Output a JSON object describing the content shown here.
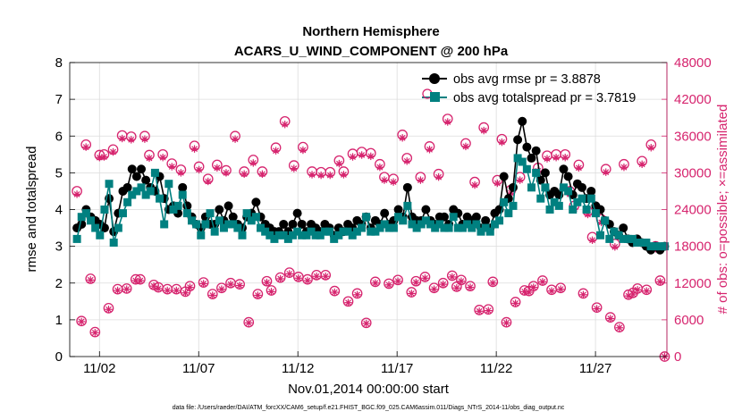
{
  "chart_data": {
    "type": "line",
    "title_line1": "Northern Hemisphere",
    "title_line2": "ACARS_U_WIND_COMPONENT @ 200 hPa",
    "xlabel": "Nov.01,2014 00:00:00 start",
    "ylabel_left": "rmse and totalspread",
    "ylabel_right": "# of obs: o=possible; ×=assimilated",
    "footnote": "data file: /Users/raeder/DAI/ATM_forcXX/CAM6_setup/f.e21.FHIST_BGC.f09_025.CAM6assim.011/Diags_NTrS_2014-11/obs_diag_output.nc",
    "xlim": [
      0.5,
      30.6
    ],
    "ylim_left": [
      0,
      8
    ],
    "ylim_right": [
      0,
      48000
    ],
    "left_ticks": [
      "0",
      "1",
      "2",
      "3",
      "4",
      "5",
      "6",
      "7",
      "8"
    ],
    "right_ticks": [
      "0",
      "6000",
      "12000",
      "18000",
      "24000",
      "30000",
      "36000",
      "42000",
      "48000"
    ],
    "x_ticks": [
      {
        "day": 2,
        "label": "11/02"
      },
      {
        "day": 7,
        "label": "11/07"
      },
      {
        "day": 12,
        "label": "11/12"
      },
      {
        "day": 17,
        "label": "11/17"
      },
      {
        "day": 22,
        "label": "11/22"
      },
      {
        "day": 27,
        "label": "11/27"
      }
    ],
    "colors": {
      "rmse": "#000000",
      "spread": "#008080",
      "obs": "#d6246e",
      "grid": "#dcdcdc"
    },
    "legend": {
      "position": "top-right",
      "entries": [
        "obs avg rmse pr = 3.8878",
        "obs avg totalspread pr = 3.7819"
      ]
    },
    "series": [
      {
        "name": "obs avg rmse pr = 3.8878",
        "axis": "left",
        "values": [
          3.5,
          3.6,
          4.0,
          3.8,
          3.7,
          3.6,
          3.5,
          4.3,
          3.4,
          3.9,
          4.5,
          4.6,
          5.1,
          4.9,
          5.1,
          4.8,
          4.6,
          4.5,
          4.9,
          4.3,
          4.0,
          4.1,
          3.9,
          4.6,
          4.1,
          3.8,
          3.6,
          3.5,
          3.8,
          3.6,
          3.6,
          4.0,
          3.7,
          4.1,
          3.8,
          3.6,
          3.5,
          3.8,
          3.9,
          4.2,
          3.8,
          3.6,
          3.5,
          3.4,
          3.4,
          3.6,
          3.4,
          3.6,
          3.9,
          3.6,
          3.4,
          3.6,
          3.5,
          3.4,
          3.6,
          3.5,
          3.3,
          3.5,
          3.4,
          3.6,
          3.5,
          3.7,
          3.6,
          3.8,
          3.5,
          3.7,
          3.6,
          3.9,
          3.6,
          3.7,
          4.0,
          3.8,
          4.6,
          3.8,
          3.7,
          3.7,
          4.0,
          3.7,
          3.6,
          3.8,
          3.8,
          3.6,
          4.0,
          3.9,
          3.6,
          3.8,
          3.7,
          3.8,
          3.5,
          3.7,
          3.5,
          3.9,
          4.0,
          4.9,
          4.3,
          4.6,
          5.9,
          6.4,
          5.7,
          5.4,
          5.6,
          4.8,
          5.0,
          4.4,
          4.5,
          4.4,
          5.1,
          4.9,
          4.4,
          4.7,
          4.6,
          4.3,
          4.5,
          4.1,
          4.0,
          3.7,
          3.6,
          3.4,
          3.3,
          3.5,
          3.2,
          3.1,
          3.2,
          3.1,
          3.0,
          2.9,
          3.0,
          2.9,
          3.0
        ]
      },
      {
        "name": "obs avg totalspread pr = 3.7819",
        "axis": "left",
        "values": [
          3.2,
          3.8,
          3.9,
          3.7,
          3.5,
          3.3,
          4.0,
          4.7,
          3.1,
          3.5,
          3.9,
          4.2,
          4.4,
          4.5,
          4.6,
          4.4,
          4.5,
          5.0,
          4.3,
          3.6,
          4.7,
          4.0,
          4.1,
          4.4,
          3.9,
          3.7,
          3.6,
          3.3,
          3.6,
          3.9,
          3.4,
          3.7,
          3.5,
          3.6,
          3.6,
          3.5,
          3.3,
          3.9,
          3.7,
          3.8,
          3.5,
          3.4,
          3.3,
          3.2,
          3.3,
          3.3,
          3.2,
          3.3,
          3.4,
          3.3,
          3.3,
          3.4,
          3.3,
          3.3,
          3.4,
          3.4,
          3.2,
          3.3,
          3.4,
          3.4,
          3.3,
          3.4,
          3.5,
          3.8,
          3.4,
          3.4,
          3.5,
          3.6,
          3.5,
          3.5,
          3.8,
          3.7,
          4.1,
          3.6,
          3.5,
          3.6,
          3.7,
          3.6,
          3.5,
          3.6,
          3.5,
          3.5,
          3.8,
          3.5,
          3.5,
          3.6,
          3.5,
          3.6,
          3.4,
          3.5,
          3.4,
          3.6,
          3.7,
          4.2,
          3.9,
          4.1,
          5.4,
          5.3,
          5.1,
          4.6,
          5.0,
          4.3,
          4.6,
          4.0,
          4.2,
          4.1,
          4.6,
          4.5,
          4.0,
          4.2,
          4.3,
          4.0,
          4.3,
          3.9,
          3.3,
          3.7,
          3.2,
          3.4,
          3.3,
          3.2,
          3.2,
          3.2,
          3.1,
          3.1,
          3.1,
          3.0,
          3.0,
          3.0,
          3.0
        ]
      },
      {
        "name": "# of obs possible",
        "axis": "right",
        "marker": "circle",
        "values": [
          27000,
          5800,
          34600,
          12700,
          4000,
          32900,
          33000,
          7900,
          33800,
          11000,
          36100,
          11100,
          35900,
          12600,
          12600,
          36000,
          32900,
          11700,
          11300,
          33000,
          11000,
          31500,
          11000,
          30500,
          10600,
          11500,
          34400,
          31000,
          12100,
          29000,
          10200,
          31300,
          11200,
          30400,
          12000,
          36000,
          11800,
          30200,
          5600,
          32100,
          10200,
          30200,
          12300,
          10800,
          34100,
          12900,
          38400,
          13700,
          31200,
          13000,
          34200,
          12600,
          30200,
          13300,
          30100,
          13300,
          30100,
          10700,
          32000,
          30200,
          9000,
          33100,
          10300,
          33400,
          5500,
          33200,
          12200,
          31400,
          29300,
          11900,
          29000,
          12500,
          36200,
          32400,
          10500,
          12300,
          29300,
          13000,
          34300,
          11200,
          29800,
          12000,
          38800,
          13200,
          11400,
          12500,
          34800,
          11500,
          28500,
          7600,
          37400,
          7700,
          12200,
          28800,
          35500,
          5600,
          27200,
          8900,
          29300,
          10800,
          10700,
          11500,
          30800,
          12400,
          32800,
          10900,
          33000,
          11200,
          33000,
          27000,
          24600,
          31300,
          10300,
          23700,
          19500,
          8000,
          22400,
          30600,
          6400,
          18400,
          4800,
          31400,
          10100,
          10400,
          11100,
          31900,
          10900,
          34600,
          18000,
          12400,
          0
        ]
      },
      {
        "name": "# of obs assimilated",
        "axis": "right",
        "marker": "star",
        "values": [
          26500,
          5700,
          34200,
          12500,
          3900,
          32500,
          32600,
          7700,
          33400,
          10800,
          35600,
          11000,
          35400,
          12400,
          12400,
          35500,
          32400,
          11500,
          11100,
          32500,
          10800,
          31000,
          10800,
          30000,
          10400,
          11300,
          33900,
          30500,
          11900,
          28600,
          10000,
          30800,
          11000,
          30000,
          11800,
          35500,
          11600,
          29800,
          5500,
          31600,
          10000,
          29800,
          12100,
          10600,
          33600,
          12700,
          37900,
          13500,
          30700,
          12800,
          33700,
          12400,
          29700,
          13100,
          29600,
          13100,
          29600,
          10500,
          31500,
          29700,
          8800,
          32600,
          10100,
          32900,
          5400,
          32700,
          12000,
          30900,
          28800,
          11700,
          28500,
          12300,
          35700,
          31900,
          10300,
          12100,
          28800,
          12800,
          33800,
          11000,
          29300,
          11800,
          38300,
          13000,
          11200,
          12300,
          34300,
          11300,
          28000,
          7400,
          36900,
          7500,
          12000,
          28300,
          35000,
          5500,
          26700,
          8700,
          28800,
          10600,
          10500,
          11300,
          30300,
          12200,
          32300,
          10700,
          32500,
          11000,
          32500,
          26500,
          24100,
          30800,
          10100,
          23200,
          19000,
          7800,
          21900,
          30100,
          6200,
          17900,
          4700,
          30900,
          9900,
          10200,
          10900,
          31400,
          10700,
          34100,
          17600,
          12200,
          0
        ]
      }
    ]
  }
}
